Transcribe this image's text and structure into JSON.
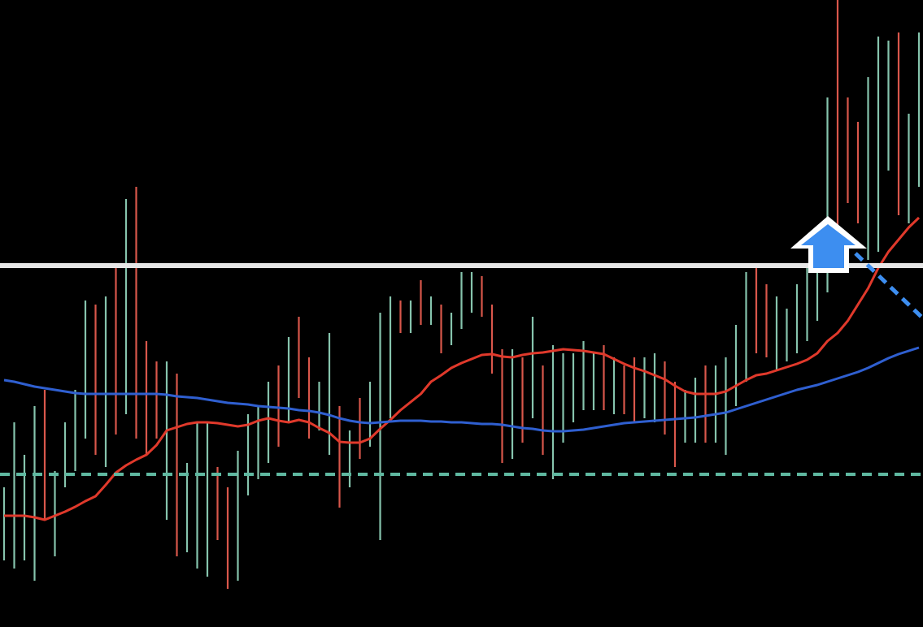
{
  "chart_data": {
    "type": "range-bar",
    "ylim": [
      0,
      772
    ],
    "highs": [
      172,
      252,
      212,
      272,
      292,
      192,
      252,
      292,
      402,
      397,
      407,
      442,
      527,
      542,
      352,
      327,
      327,
      312,
      202,
      252,
      252,
      197,
      172,
      217,
      262,
      272,
      302,
      322,
      357,
      382,
      332,
      302,
      362,
      272,
      242,
      282,
      302,
      387,
      407,
      402,
      402,
      427,
      407,
      397,
      387,
      437,
      437,
      432,
      397,
      342,
      342,
      332,
      382,
      322,
      347,
      337,
      337,
      352,
      337,
      347,
      332,
      322,
      332,
      332,
      337,
      327,
      302,
      292,
      307,
      322,
      322,
      332,
      372,
      437,
      442,
      422,
      407,
      392,
      422,
      442,
      447,
      652,
      772,
      652,
      622,
      677,
      727,
      722,
      732,
      632,
      732
    ],
    "lows": [
      82,
      72,
      82,
      57,
      132,
      87,
      172,
      192,
      232,
      212,
      197,
      237,
      262,
      232,
      212,
      232,
      132,
      87,
      92,
      72,
      62,
      107,
      47,
      57,
      162,
      182,
      202,
      222,
      252,
      282,
      232,
      242,
      212,
      147,
      172,
      207,
      222,
      107,
      257,
      362,
      362,
      372,
      372,
      337,
      347,
      367,
      387,
      382,
      312,
      202,
      207,
      227,
      257,
      212,
      182,
      227,
      252,
      267,
      267,
      267,
      262,
      262,
      252,
      257,
      252,
      237,
      197,
      227,
      227,
      227,
      227,
      212,
      272,
      302,
      337,
      332,
      317,
      327,
      337,
      352,
      377,
      412,
      442,
      522,
      497,
      452,
      462,
      562,
      507,
      497,
      542
    ],
    "rising": [
      true,
      true,
      true,
      true,
      false,
      true,
      true,
      true,
      true,
      false,
      true,
      false,
      true,
      false,
      false,
      false,
      true,
      false,
      true,
      true,
      true,
      false,
      false,
      true,
      true,
      true,
      true,
      false,
      true,
      false,
      false,
      true,
      true,
      false,
      true,
      false,
      true,
      true,
      true,
      false,
      true,
      false,
      true,
      false,
      true,
      true,
      true,
      false,
      false,
      false,
      true,
      false,
      true,
      false,
      true,
      true,
      true,
      true,
      true,
      false,
      true,
      false,
      false,
      true,
      true,
      false,
      false,
      true,
      true,
      false,
      true,
      true,
      true,
      true,
      false,
      false,
      true,
      true,
      true,
      true,
      true,
      true,
      false,
      false,
      false,
      true,
      true,
      true,
      false,
      true,
      true
    ],
    "up_color": "#86c4ad",
    "down_color": "#d9574b",
    "series": [
      {
        "color": "#e0392b",
        "values": [
          137,
          137,
          137,
          135,
          132,
          137,
          142,
          148,
          155,
          161,
          175,
          190,
          199,
          206,
          212,
          224,
          242,
          246,
          250,
          252,
          252,
          251,
          249,
          247,
          249,
          254,
          257,
          254,
          252,
          255,
          252,
          245,
          239,
          228,
          227,
          227,
          232,
          244,
          255,
          267,
          277,
          287,
          302,
          310,
          319,
          325,
          330,
          335,
          336,
          333,
          332,
          335,
          337,
          338,
          340,
          342,
          341,
          340,
          338,
          336,
          330,
          324,
          319,
          315,
          310,
          305,
          297,
          290,
          287,
          287,
          287,
          290,
          297,
          304,
          310,
          312,
          316,
          320,
          324,
          329,
          337,
          352,
          362,
          377,
          397,
          417,
          442,
          462,
          477,
          492,
          504
        ]
      },
      {
        "color": "#2f5fd0",
        "values": [
          304,
          302,
          299,
          296,
          294,
          292,
          290,
          288,
          287,
          287,
          287,
          287,
          287,
          287,
          287,
          287,
          286,
          284,
          283,
          282,
          280,
          278,
          276,
          275,
          274,
          272,
          271,
          270,
          269,
          267,
          266,
          264,
          261,
          257,
          254,
          252,
          251,
          252,
          253,
          254,
          254,
          254,
          253,
          253,
          252,
          252,
          251,
          250,
          250,
          249,
          247,
          245,
          244,
          242,
          241,
          241,
          242,
          243,
          245,
          247,
          249,
          251,
          252,
          253,
          254,
          255,
          256,
          257,
          258,
          260,
          262,
          264,
          268,
          272,
          276,
          280,
          284,
          288,
          292,
          295,
          298,
          302,
          306,
          310,
          314,
          319,
          325,
          331,
          336,
          340,
          344
        ]
      }
    ],
    "levels": [
      {
        "value": 445,
        "color": "#e6e6e6",
        "dashed": false
      },
      {
        "value": 188,
        "color": "#5fb8a0",
        "dashed": true
      }
    ]
  }
}
